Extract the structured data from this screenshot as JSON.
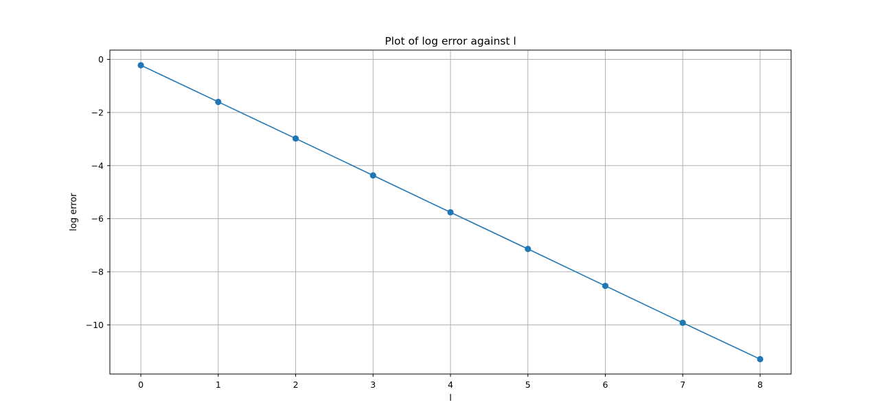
{
  "chart_data": {
    "type": "line",
    "title": "Plot of log error against l",
    "xlabel": "l",
    "ylabel": "log error",
    "x": [
      0,
      1,
      2,
      3,
      4,
      5,
      6,
      7,
      8
    ],
    "series": [
      {
        "values": [
          -0.22,
          -1.6,
          -2.98,
          -4.37,
          -5.76,
          -7.14,
          -8.53,
          -9.92,
          -11.29
        ],
        "color": "#1f77b4",
        "marker": "circle"
      }
    ],
    "xlim": [
      -0.4,
      8.4
    ],
    "ylim": [
      -11.85,
      0.35
    ],
    "xticks": [
      0,
      1,
      2,
      3,
      4,
      5,
      6,
      7,
      8
    ],
    "xtick_labels": [
      "0",
      "1",
      "2",
      "3",
      "4",
      "5",
      "6",
      "7",
      "8"
    ],
    "yticks": [
      0,
      -2,
      -4,
      -6,
      -8,
      -10
    ],
    "ytick_labels": [
      "0",
      "−2",
      "−4",
      "−6",
      "−8",
      "−10"
    ],
    "grid": true,
    "grid_color": "#b0b0b0"
  }
}
